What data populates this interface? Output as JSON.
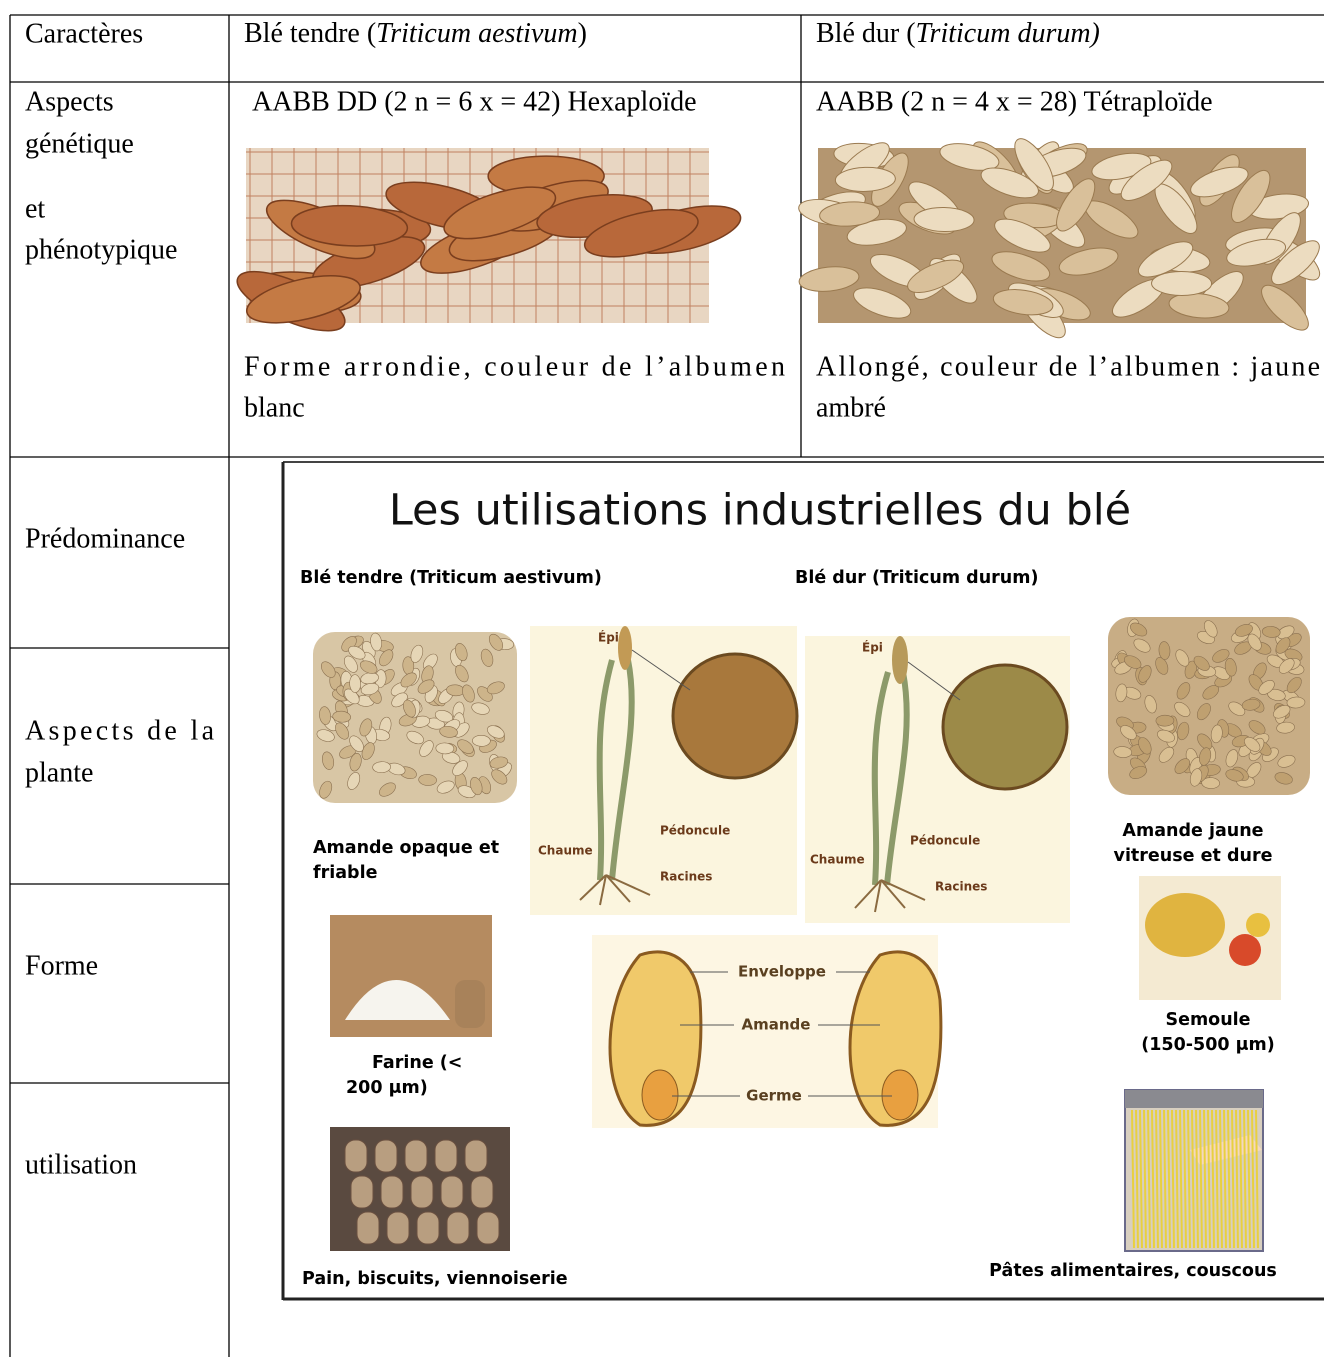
{
  "table": {
    "header": {
      "characters": "Caractères",
      "soft": {
        "before": "Blé tendre (",
        "italic": "Triticum aestivum",
        "after": ")"
      },
      "durum": {
        "before": "Blé dur (",
        "italic": "Triticum durum)"
      }
    },
    "genetics_row": {
      "label": [
        "Aspects",
        "génétique",
        "et",
        "phénotypique"
      ],
      "soft": {
        "ploidy": "AABB DD (2 n = 6 x = 42) Hexaploïde",
        "description": [
          "Forme arrondie, couleur de l’albumen",
          "blanc"
        ]
      },
      "durum": {
        "ploidy": "AABB (2 n = 4 x = 28) Tétraploïde",
        "description": [
          "Allongé, couleur de l’albumen : jaune",
          "ambré"
        ]
      }
    },
    "row_labels": {
      "predominance": "Prédominance",
      "plant": [
        "Aspects de la",
        "plante"
      ],
      "shape": "Forme",
      "use": "utilisation"
    }
  },
  "infographic": {
    "title": "Les utilisations industrielles du blé",
    "soft_heading": "Blé tendre (Triticum aestivum)",
    "durum_heading": "Blé dur (Triticum durum)",
    "soft_kernel": [
      "Amande opaque et",
      "friable"
    ],
    "durum_kernel": [
      "Amande jaune",
      "vitreuse et dure"
    ],
    "flour": [
      "Farine (<",
      "200 μm)"
    ],
    "semolina": [
      "Semoule",
      "(150-500 μm)"
    ],
    "bread": "Pain, biscuits, viennoiserie",
    "pasta": "Pâtes alimentaires, couscous",
    "soft_plant": {
      "ear": "Épi",
      "peduncle": "Pédoncule",
      "stem": "Chaume",
      "roots": "Racines"
    },
    "durum_plant": {
      "ear": "Épi",
      "peduncle": "Pédoncule",
      "stem": "Chaume",
      "roots": "Racines"
    },
    "grain_diagram": {
      "bran": "Enveloppe",
      "endosperm": "Amande",
      "germ": "Germe"
    }
  }
}
